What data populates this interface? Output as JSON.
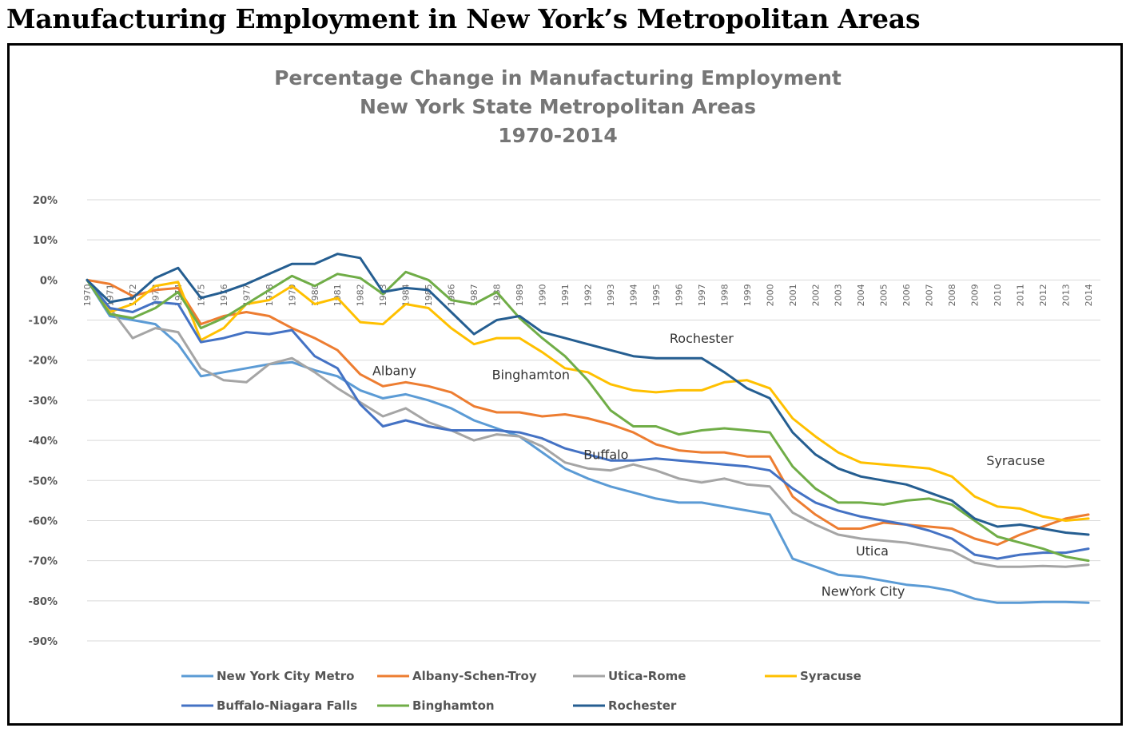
{
  "page": {
    "title": "Manufacturing Employment in New York’s Metropolitan Areas"
  },
  "chart_data": {
    "type": "line",
    "title": [
      "Percentage Change in Manufacturing Employment",
      "New York State Metropolitan Areas",
      "1970-2014"
    ],
    "xlabel": "",
    "ylabel": "",
    "ylim": [
      -90,
      20
    ],
    "yticks": [
      20,
      10,
      0,
      -10,
      -20,
      -30,
      -40,
      -50,
      -60,
      -70,
      -80,
      -90
    ],
    "ytick_labels": [
      "20%",
      "10%",
      "0%",
      "-10%",
      "-20%",
      "-30%",
      "-40%",
      "-50%",
      "-60%",
      "-70%",
      "-80%",
      "-90%"
    ],
    "grid": true,
    "legend_position": "bottom",
    "x": [
      1970,
      1971,
      1972,
      1973,
      1974,
      1975,
      1976,
      1977,
      1978,
      1979,
      1980,
      1981,
      1982,
      1983,
      1984,
      1985,
      1986,
      1987,
      1988,
      1989,
      1990,
      1991,
      1992,
      1993,
      1994,
      1995,
      1996,
      1997,
      1998,
      1999,
      2000,
      2001,
      2002,
      2003,
      2004,
      2005,
      2006,
      2007,
      2008,
      2009,
      2010,
      2011,
      2012,
      2013,
      2014
    ],
    "series": [
      {
        "name": "New York City Metro",
        "color": "#5b9bd5",
        "values": [
          0,
          -9,
          -10,
          -11,
          -16,
          -24,
          -23,
          -22,
          -21,
          -20.5,
          -22.5,
          -24,
          -27.5,
          -29.5,
          -28.5,
          -30,
          -32,
          -35,
          -37,
          -39,
          -43,
          -47,
          -49.5,
          -51.5,
          -53,
          -54.5,
          -55.5,
          -55.5,
          -56.5,
          -57.5,
          -58.5,
          -69.5,
          -71.5,
          -73.5,
          -74,
          -75,
          -76,
          -76.5,
          -77.5,
          -79.5,
          -80.5,
          -80.5,
          -80.3,
          -80.3,
          -80.5
        ]
      },
      {
        "name": "Albany-Schen-Troy",
        "color": "#ed7d31",
        "values": [
          0,
          -1,
          -4,
          -2.5,
          -2,
          -11,
          -9,
          -8,
          -9,
          -12,
          -14.5,
          -17.5,
          -23.5,
          -26.5,
          -25.5,
          -26.5,
          -28,
          -31.5,
          -33,
          -33,
          -34,
          -33.5,
          -34.5,
          -36,
          -38,
          -41,
          -42.5,
          -43,
          -43,
          -44,
          -44,
          -54,
          -58.5,
          -62,
          -62,
          -60.5,
          -61,
          -61.5,
          -62,
          -64.5,
          -66,
          -63.5,
          -61.5,
          -59.5,
          -58.5
        ]
      },
      {
        "name": "Utica-Rome",
        "color": "#a5a5a5",
        "values": [
          0,
          -7,
          -14.5,
          -12,
          -13,
          -22,
          -25,
          -25.5,
          -21,
          -19.5,
          -23,
          -27,
          -30.5,
          -34,
          -32,
          -35.5,
          -37.5,
          -40,
          -38.5,
          -39,
          -41.5,
          -45.5,
          -47,
          -47.5,
          -46,
          -47.5,
          -49.5,
          -50.5,
          -49.5,
          -51,
          -51.5,
          -58,
          -61,
          -63.5,
          -64.5,
          -65,
          -65.5,
          -66.5,
          -67.5,
          -70.5,
          -71.5,
          -71.5,
          -71.3,
          -71.5,
          -71
        ]
      },
      {
        "name": "Syracuse",
        "color": "#ffc000",
        "values": [
          0,
          -8,
          -6,
          -1.5,
          -0.5,
          -15,
          -12,
          -6,
          -5,
          -1.5,
          -6,
          -4.5,
          -10.5,
          -11,
          -6,
          -7,
          -12,
          -16,
          -14.5,
          -14.5,
          -18,
          -22,
          -23,
          -26,
          -27.5,
          -28,
          -27.5,
          -27.5,
          -25.5,
          -25,
          -27,
          -34.5,
          -39,
          -43,
          -45.5,
          -46,
          -46.5,
          -47,
          -49,
          -54,
          -56.5,
          -57,
          -59,
          -60,
          -59.5
        ]
      },
      {
        "name": "Buffalo-Niagara  Falls",
        "color": "#4472c4",
        "values": [
          0,
          -7,
          -8,
          -5.5,
          -6,
          -15.5,
          -14.5,
          -13,
          -13.5,
          -12.5,
          -19,
          -22,
          -31,
          -36.5,
          -35,
          -36.5,
          -37.5,
          -37.5,
          -37.5,
          -38,
          -39.5,
          -42,
          -43.5,
          -45,
          -45,
          -44.5,
          -45,
          -45.5,
          -46,
          -46.5,
          -47.5,
          -52,
          -55.5,
          -57.5,
          -59,
          -60,
          -61,
          -62.5,
          -64.5,
          -68.5,
          -69.5,
          -68.5,
          -68,
          -68,
          -67
        ]
      },
      {
        "name": "Binghamton",
        "color": "#70ad47",
        "values": [
          0,
          -8.5,
          -9.5,
          -7,
          -3,
          -12,
          -9.5,
          -6,
          -2.5,
          1,
          -1.5,
          1.5,
          0.5,
          -3.5,
          2,
          0,
          -5,
          -6,
          -3,
          -9.5,
          -14.5,
          -19,
          -25,
          -32.5,
          -36.5,
          -36.5,
          -38.5,
          -37.5,
          -37,
          -37.5,
          -38,
          -46.5,
          -52,
          -55.5,
          -55.5,
          -56,
          -55,
          -54.5,
          -56,
          -60,
          -64,
          -65.5,
          -67,
          -69,
          -70
        ]
      },
      {
        "name": "Rochester",
        "color": "#255e91",
        "values": [
          0,
          -5.5,
          -4.5,
          0.5,
          3,
          -4.5,
          -3,
          -1,
          1.5,
          4,
          4,
          6.5,
          5.5,
          -3,
          -2,
          -2.5,
          -8,
          -13.5,
          -10,
          -9,
          -13,
          -14.5,
          -16,
          -17.5,
          -19,
          -19.5,
          -19.5,
          -19.5,
          -23,
          -27,
          -29.5,
          -38,
          -43.5,
          -47,
          -49,
          -50,
          -51,
          -53,
          -55,
          -59.5,
          -61.5,
          -61,
          -62,
          -63,
          -63.5
        ]
      }
    ],
    "annotations": [
      {
        "text": "Rochester",
        "x": 1997,
        "y": -14.5
      },
      {
        "text": "Albany",
        "x": 1983.5,
        "y": -22.5
      },
      {
        "text": "Binghamton",
        "x": 1989.5,
        "y": -23.5
      },
      {
        "text": "Buffalo",
        "x": 1992.8,
        "y": -43.5
      },
      {
        "text": "Syracuse",
        "x": 2010.8,
        "y": -45
      },
      {
        "text": "Utica",
        "x": 2004.5,
        "y": -67.5
      },
      {
        "text": "NewYork City",
        "x": 2004.1,
        "y": -77.5
      }
    ]
  }
}
